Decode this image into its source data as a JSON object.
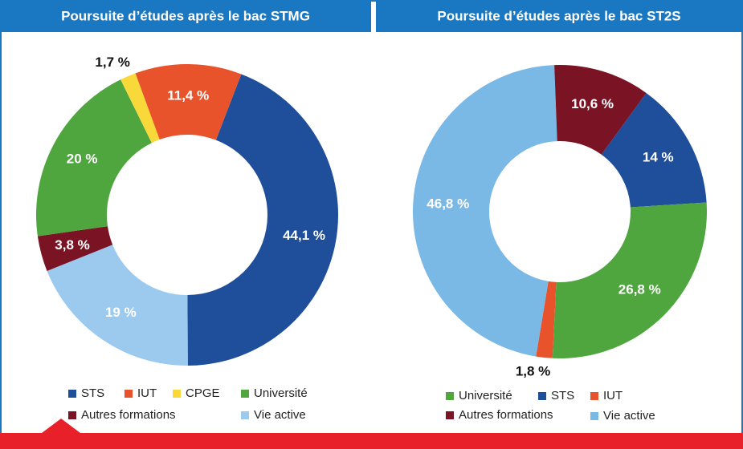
{
  "chart_data": [
    {
      "type": "donut",
      "title": "Poursuite d’études après le bac STMG",
      "categories": [
        "STS",
        "IUT",
        "CPGE",
        "Université",
        "Autres formations",
        "Vie active"
      ],
      "values": [
        44.1,
        11.4,
        1.7,
        20,
        3.8,
        19
      ],
      "value_labels": [
        "44,1 %",
        "11,4 %",
        "1,7 %",
        "20 %",
        "3,8 %",
        "19 %"
      ],
      "colors": [
        "#1f4e9a",
        "#e8532b",
        "#f9d93a",
        "#4fa63f",
        "#7a1424",
        "#9ccaee"
      ]
    },
    {
      "type": "donut",
      "title": "Poursuite d’études après le bac ST2S",
      "categories": [
        "Université",
        "STS",
        "IUT",
        "Autres formations",
        "Vie active"
      ],
      "values": [
        26.8,
        14,
        1.8,
        10.6,
        46.8
      ],
      "value_labels": [
        "26,8 %",
        "14 %",
        "1,8 %",
        "10,6 %",
        "46,8 %"
      ],
      "colors": [
        "#4fa63f",
        "#1f4e9a",
        "#e8532b",
        "#7a1424",
        "#7ab8e6"
      ]
    }
  ]
}
